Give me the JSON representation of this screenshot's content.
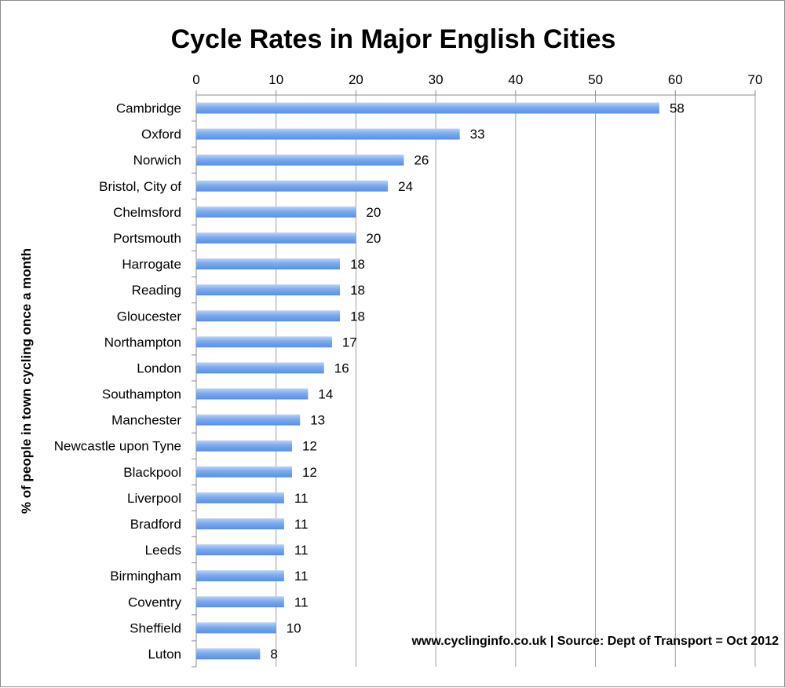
{
  "chart_data": {
    "type": "bar",
    "orientation": "horizontal",
    "title": "Cycle Rates in Major English Cities",
    "xlabel": "",
    "ylabel": "% of people in town cycling once a month",
    "xlim": [
      0,
      70
    ],
    "x_ticks": [
      0,
      10,
      20,
      30,
      40,
      50,
      60,
      70
    ],
    "x_axis_position": "top",
    "grid": true,
    "legend": "none",
    "bar_color": "#7aaaf0",
    "categories": [
      "Cambridge",
      "Oxford",
      "Norwich",
      "Bristol, City of",
      "Chelmsford",
      "Portsmouth",
      "Harrogate",
      "Reading",
      "Gloucester",
      "Northampton",
      "London",
      "Southampton",
      "Manchester",
      "Newcastle upon Tyne",
      "Blackpool",
      "Liverpool",
      "Bradford",
      "Leeds",
      "Birmingham",
      "Coventry",
      "Sheffield",
      "Luton"
    ],
    "values": [
      58,
      33,
      26,
      24,
      20,
      20,
      18,
      18,
      18,
      17,
      16,
      14,
      13,
      12,
      12,
      11,
      11,
      11,
      11,
      11,
      10,
      8
    ],
    "annotation": "www.cyclinginfo.co.uk | Source: Dept of Transport = Oct 2012"
  }
}
